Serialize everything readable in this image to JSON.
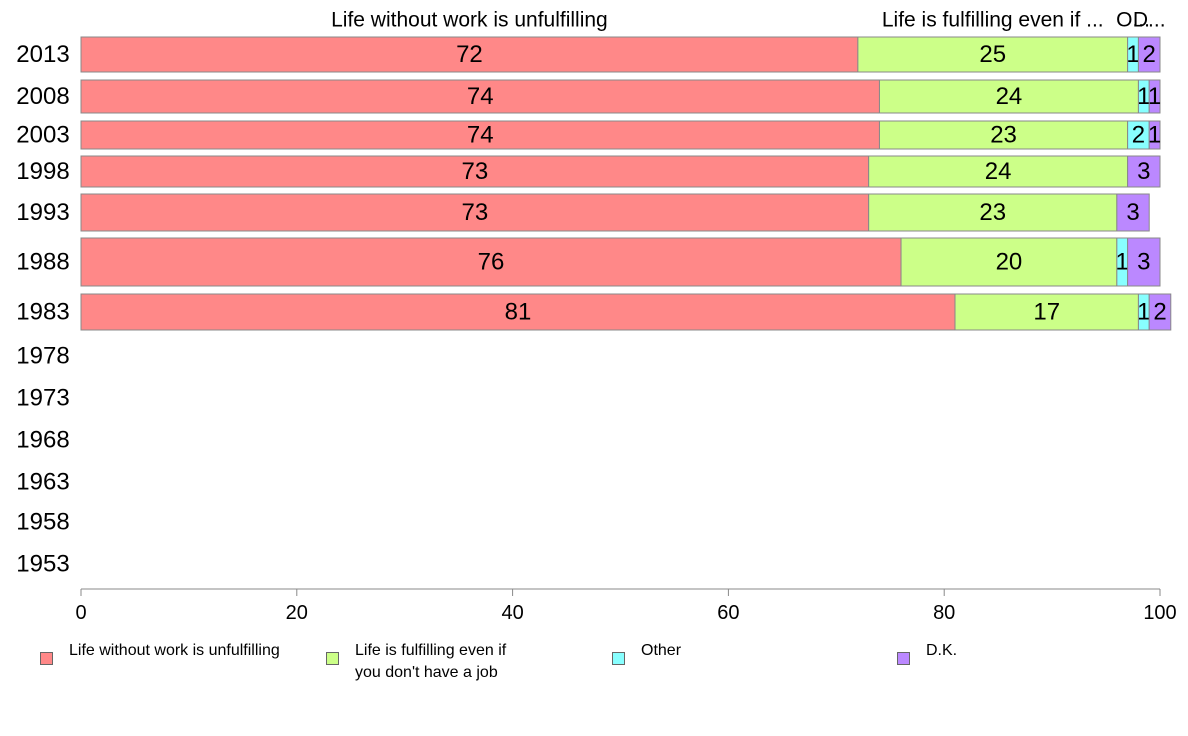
{
  "chart_data": {
    "type": "bar",
    "orientation": "horizontal",
    "stacked": true,
    "categories": [
      "2013",
      "2008",
      "2003",
      "1998",
      "1993",
      "1988",
      "1983",
      "1978",
      "1973",
      "1968",
      "1963",
      "1958",
      "1953"
    ],
    "series": [
      {
        "name": "Life without work is unfulfilling",
        "color": "#ff8888",
        "values": [
          72,
          74,
          74,
          73,
          73,
          76,
          81,
          null,
          null,
          null,
          null,
          null,
          null
        ]
      },
      {
        "name": "Life is fulfilling even if you don't have a job",
        "color": "#ccff88",
        "values": [
          25,
          24,
          23,
          24,
          23,
          20,
          17,
          null,
          null,
          null,
          null,
          null,
          null
        ]
      },
      {
        "name": "Other",
        "color": "#88ffff",
        "values": [
          1,
          1,
          2,
          0,
          0,
          1,
          1,
          null,
          null,
          null,
          null,
          null,
          null
        ]
      },
      {
        "name": "D.K.",
        "color": "#bb88ff",
        "values": [
          2,
          1,
          1,
          3,
          3,
          3,
          2,
          null,
          null,
          null,
          null,
          null,
          null
        ]
      }
    ],
    "top_labels": [
      "Life without work is unfulfilling",
      "Life is fulfilling even if ...",
      "O...",
      "D..."
    ],
    "xlim": [
      0,
      100
    ],
    "xticks": [
      "0",
      "20",
      "40",
      "60",
      "80",
      "100"
    ],
    "xlabel": "",
    "ylabel": "",
    "grid": false,
    "legend_position": "bottom"
  },
  "legend": [
    {
      "text": "Life without work is unfulfilling",
      "color": "#ff8888"
    },
    {
      "text": "Life is fulfilling even if\nyou don't have a job",
      "color": "#ccff88"
    },
    {
      "text": "Other",
      "color": "#88ffff"
    },
    {
      "text": "D.K.",
      "color": "#bb88ff"
    }
  ]
}
